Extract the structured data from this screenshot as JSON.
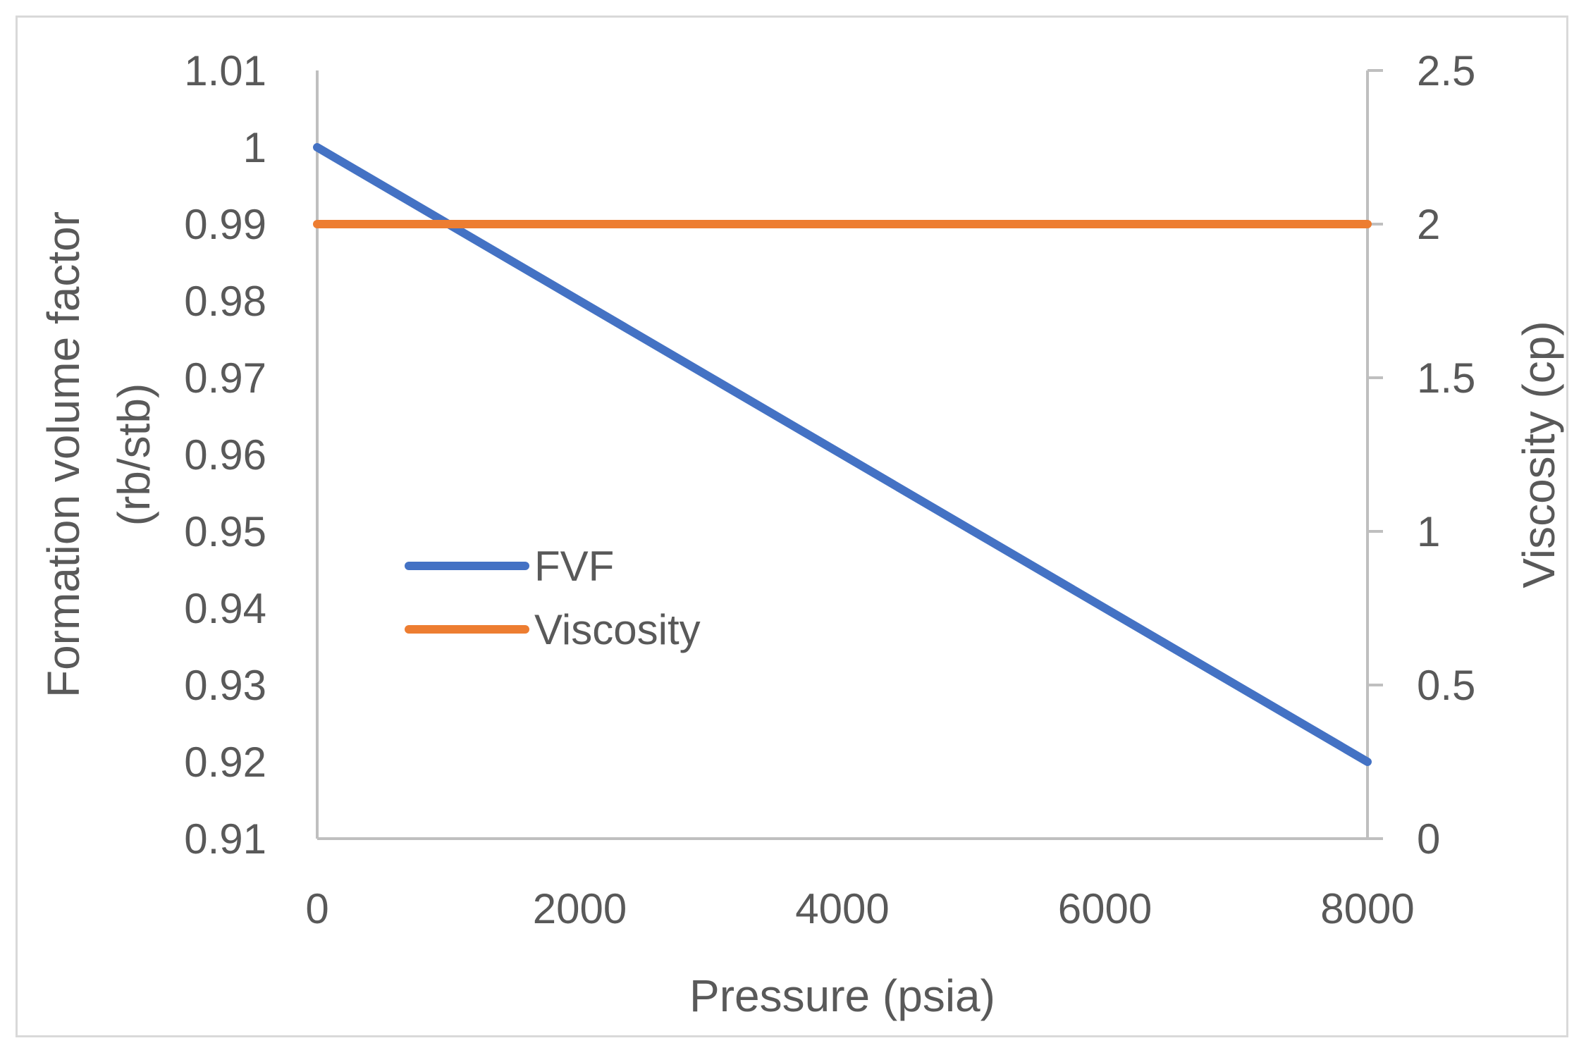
{
  "chart_data": {
    "type": "line",
    "title": "",
    "xlabel": "Pressure (psia)",
    "ylabel_left": [
      "Formation volume factor",
      "(rb/stb)"
    ],
    "ylabel_right": "Viscosity (cp)",
    "xlim": [
      0,
      8000
    ],
    "ylim_left": [
      0.91,
      1.01
    ],
    "ylim_right": [
      0,
      2.5
    ],
    "x_ticks": [
      "0",
      "2000",
      "4000",
      "6000",
      "8000"
    ],
    "y_left_ticks": [
      "0.91",
      "0.92",
      "0.93",
      "0.94",
      "0.95",
      "0.96",
      "0.97",
      "0.98",
      "0.99",
      "1",
      "1.01"
    ],
    "y_right_ticks": [
      "0",
      "0.5",
      "1",
      "1.5",
      "2",
      "2.5"
    ],
    "grid": false,
    "legend_position": "center-left",
    "series": [
      {
        "name": "FVF",
        "axis": "left",
        "color": "#4472c4",
        "x": [
          0,
          8000
        ],
        "y": [
          1.0,
          0.92
        ]
      },
      {
        "name": "Viscosity",
        "axis": "right",
        "color": "#ed7d31",
        "x": [
          0,
          8000
        ],
        "y": [
          2.0,
          2.0
        ]
      }
    ]
  }
}
